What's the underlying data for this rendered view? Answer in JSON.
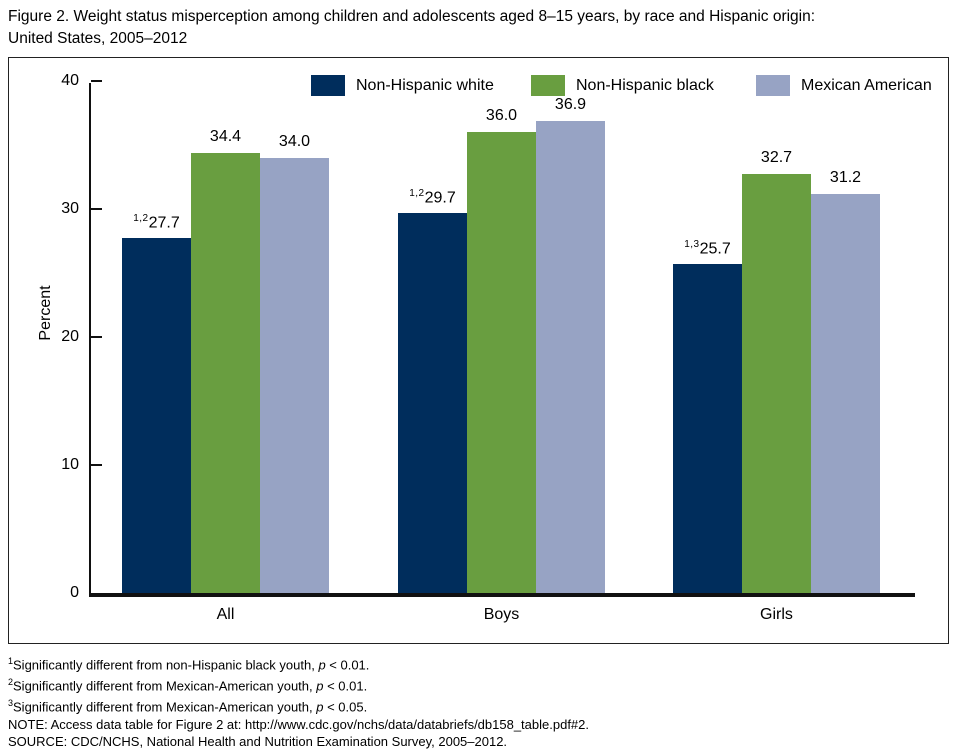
{
  "figure": {
    "title_line1": "Figure 2. Weight status misperception among children and adolescents aged 8–15 years, by race and Hispanic origin:",
    "title_line2": "United States, 2005–2012"
  },
  "chart_data": {
    "type": "bar",
    "title": "Figure 2. Weight status misperception among children and adolescents aged 8–15 years, by race and Hispanic origin: United States, 2005–2012",
    "xlabel": "",
    "ylabel": "Percent",
    "ylim": [
      0,
      40
    ],
    "yticks": [
      0,
      10,
      20,
      30,
      40
    ],
    "grid": false,
    "legend_position": "top",
    "categories": [
      "All",
      "Boys",
      "Girls"
    ],
    "series": [
      {
        "name": "Non-Hispanic white",
        "color": "#002d5c",
        "values": [
          27.7,
          29.7,
          25.7
        ],
        "value_superscripts": [
          "1,2",
          "1,2",
          "1,3"
        ]
      },
      {
        "name": "Non-Hispanic black",
        "color": "#699e40",
        "values": [
          34.4,
          36.0,
          32.7
        ],
        "value_superscripts": [
          "",
          "",
          ""
        ]
      },
      {
        "name": "Mexican American",
        "color": "#97a3c4",
        "values": [
          34.0,
          36.9,
          31.2
        ],
        "value_superscripts": [
          "",
          "",
          ""
        ]
      }
    ]
  },
  "footnotes": [
    {
      "sup": "1",
      "text_before_p": "Significantly different from non-Hispanic black youth, ",
      "p_var": "p",
      "text_after_p": " < 0.01."
    },
    {
      "sup": "2",
      "text_before_p": "Significantly different from Mexican-American youth, ",
      "p_var": "p",
      "text_after_p": " < 0.01."
    },
    {
      "sup": "3",
      "text_before_p": "Significantly different from Mexican-American youth, ",
      "p_var": "p",
      "text_after_p": " < 0.05."
    },
    {
      "sup": "",
      "text_before_p": "NOTE: Access data table for Figure 2 at: http://www.cdc.gov/nchs/data/databriefs/db158_table.pdf#2.",
      "p_var": "",
      "text_after_p": ""
    },
    {
      "sup": "",
      "text_before_p": "SOURCE: CDC/NCHS, National Health and Nutrition Examination Survey, 2005–2012.",
      "p_var": "",
      "text_after_p": ""
    }
  ]
}
